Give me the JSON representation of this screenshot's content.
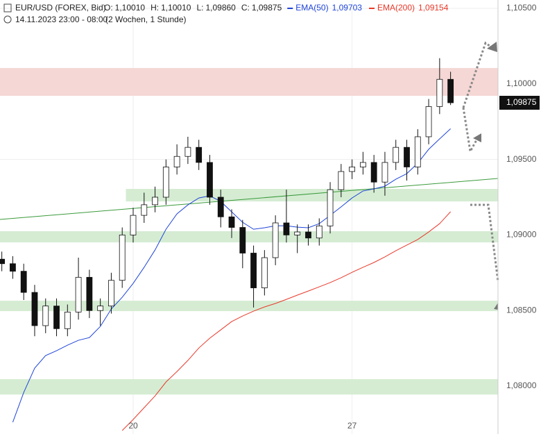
{
  "chart_data": {
    "type": "candlestick",
    "title": "EUR/USD (FOREX, Bid)",
    "ohlc_labels": [
      {
        "label": "O:",
        "value": "1,10010"
      },
      {
        "label": "H:",
        "value": "1,10010"
      },
      {
        "label": "L:",
        "value": "1,09860"
      },
      {
        "label": "C:",
        "value": "1,09875"
      }
    ],
    "subtitle": "14.11.2023 23:00 - 08:00",
    "period": "(2 Wochen, 1 Stunde)",
    "xlim": [
      -73,
      200
    ],
    "xticks": [
      {
        "value": 0,
        "label": "20"
      },
      {
        "value": 120,
        "label": "27"
      }
    ],
    "ylim": [
      1.07683,
      1.10555
    ],
    "yticks": [
      {
        "value": 1.105,
        "label": "1,10500"
      },
      {
        "value": 1.1,
        "label": "1,10000"
      },
      {
        "value": 1.095,
        "label": "1,09500"
      },
      {
        "value": 1.09,
        "label": "1,09000"
      },
      {
        "value": 1.085,
        "label": "1,08500"
      },
      {
        "value": 1.08,
        "label": "1,08000"
      }
    ],
    "grid": true,
    "x": [
      -72,
      -66,
      -60,
      -54,
      -48,
      -42,
      -36,
      -30,
      -24,
      -18,
      -12,
      -6,
      0,
      6,
      12,
      18,
      24,
      30,
      36,
      42,
      48,
      54,
      60,
      66,
      72,
      78,
      84,
      90,
      96,
      102,
      108,
      114,
      120,
      126,
      132,
      138,
      144,
      150,
      156,
      162,
      168,
      174
    ],
    "open": [
      1.0884,
      1.0881,
      1.0876,
      1.0862,
      1.084,
      1.0853,
      1.0838,
      1.0849,
      1.0872,
      1.085,
      1.0853,
      1.087,
      1.09,
      1.0913,
      1.092,
      1.0925,
      1.0945,
      1.0952,
      1.0958,
      1.0948,
      1.0925,
      1.0912,
      1.0905,
      1.0888,
      1.0865,
      1.0885,
      1.0908,
      1.09,
      1.0902,
      1.0898,
      1.0906,
      1.093,
      1.0942,
      1.0945,
      1.0948,
      1.0935,
      1.0948,
      1.0958,
      1.0945,
      1.0965,
      1.0985,
      1.1003
    ],
    "high": [
      1.0889,
      1.0886,
      1.0881,
      1.0867,
      1.0858,
      1.0858,
      1.0854,
      1.0885,
      1.0877,
      1.0858,
      1.0875,
      1.0905,
      1.0918,
      1.0928,
      1.0932,
      1.095,
      1.096,
      1.0965,
      1.0963,
      1.0953,
      1.093,
      1.0917,
      1.091,
      1.0893,
      1.089,
      1.0913,
      1.093,
      1.0907,
      1.0907,
      1.0911,
      1.0935,
      1.0947,
      1.095,
      1.0955,
      1.0953,
      1.0955,
      1.0963,
      1.0963,
      1.097,
      1.099,
      1.1017,
      1.1008
    ],
    "low": [
      1.0876,
      1.0871,
      1.0857,
      1.0833,
      1.0835,
      1.0833,
      1.0833,
      1.0844,
      1.0845,
      1.084,
      1.0848,
      1.0865,
      1.0895,
      1.0908,
      1.0915,
      1.092,
      1.094,
      1.0947,
      1.0943,
      1.092,
      1.0905,
      1.0898,
      1.0878,
      1.0852,
      1.086,
      1.088,
      1.0895,
      1.0888,
      1.0893,
      1.0893,
      1.0901,
      1.0925,
      1.0937,
      1.094,
      1.0928,
      1.0926,
      1.0943,
      1.0936,
      1.094,
      1.096,
      1.098,
      1.0986
    ],
    "close": [
      1.0881,
      1.0876,
      1.0862,
      1.084,
      1.0853,
      1.0838,
      1.0849,
      1.0872,
      1.085,
      1.0853,
      1.087,
      1.09,
      1.0913,
      1.092,
      1.0925,
      1.0945,
      1.0952,
      1.0958,
      1.0948,
      1.0925,
      1.0912,
      1.0905,
      1.0888,
      1.0865,
      1.0885,
      1.0908,
      1.09,
      1.0902,
      1.0898,
      1.0906,
      1.093,
      1.0942,
      1.0945,
      1.0948,
      1.0935,
      1.0948,
      1.0958,
      1.0945,
      1.0965,
      1.0985,
      1.1003,
      1.09875
    ],
    "last_label": "1,09875",
    "series": [
      {
        "name": "EMA(50)",
        "color": "#1f45d8",
        "value_label": "1,09703",
        "values": [
          null,
          1.07761,
          1.07958,
          1.08119,
          1.08202,
          1.08234,
          1.08271,
          1.08303,
          1.08321,
          1.08395,
          1.0851,
          1.08588,
          1.0868,
          1.08786,
          1.08901,
          1.09038,
          1.0914,
          1.09199,
          1.09245,
          1.09259,
          1.09222,
          1.09153,
          1.09084,
          1.09038,
          1.09048,
          1.09061,
          1.09061,
          1.09052,
          1.09048,
          1.09075,
          1.0913,
          1.09186,
          1.09245,
          1.09291,
          1.09305,
          1.09323,
          1.09369,
          1.09406,
          1.09475,
          1.09567,
          1.09636,
          1.09703
        ]
      },
      {
        "name": "EMA(200)",
        "color": "#e8392a",
        "value_label": "1,09154",
        "values": [
          null,
          null,
          null,
          null,
          null,
          null,
          null,
          null,
          null,
          null,
          null,
          1.07706,
          1.07779,
          1.07857,
          1.07935,
          1.08027,
          1.08096,
          1.0817,
          1.08252,
          1.08317,
          1.08372,
          1.08427,
          1.08464,
          1.08496,
          1.08524,
          1.08547,
          1.08574,
          1.08602,
          1.08629,
          1.08657,
          1.08685,
          1.08717,
          1.08753,
          1.08786,
          1.08818,
          1.08855,
          1.08896,
          1.08933,
          1.0897,
          1.0902,
          1.09075,
          1.09154
        ]
      }
    ],
    "trendline": {
      "color": "#3a9a3a",
      "x": [
        -73,
        200
      ],
      "values": [
        1.09103,
        1.09374
      ]
    },
    "zones": [
      {
        "color": "#f5d7d5",
        "start": -73,
        "range": [
          1.09921,
          1.10105
        ]
      },
      {
        "color": "#d5ecd3",
        "start": -4,
        "range": [
          1.09222,
          1.09305
        ]
      },
      {
        "color": "#d5ecd3",
        "start": -73,
        "range": [
          1.08951,
          1.09025
        ]
      },
      {
        "color": "#d5ecd3",
        "start": -73,
        "range": [
          1.08496,
          1.08565
        ]
      },
      {
        "color": "#d5ecd3",
        "start": -73,
        "range": [
          1.07944,
          1.08046
        ]
      }
    ]
  }
}
